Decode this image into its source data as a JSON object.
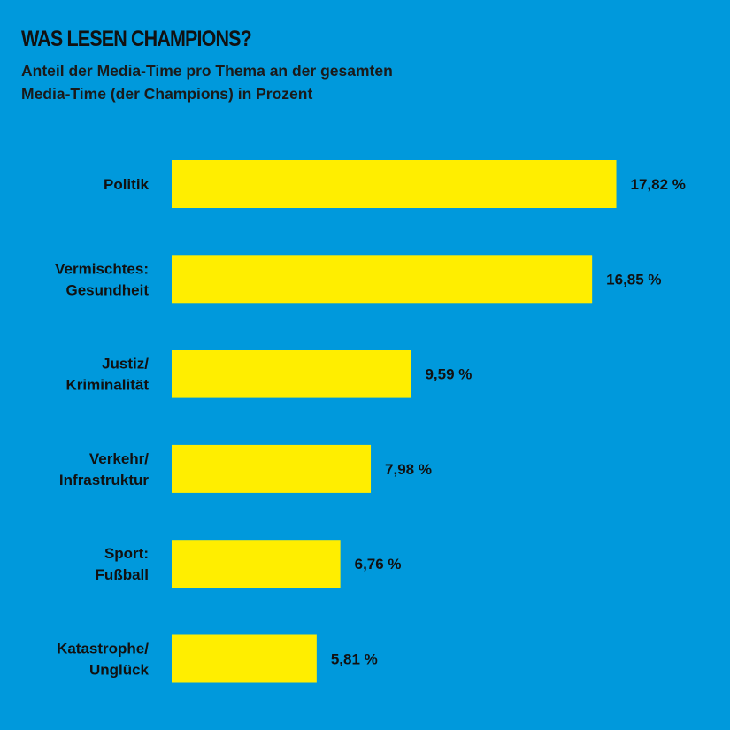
{
  "title": "WAS LESEN CHAMPIONS?",
  "subtitle_line1": "Anteil der Media-Time pro Thema an der gesamten",
  "subtitle_line2": "Media-Time (der Champions) in Prozent",
  "colors": {
    "background": "#0099dc",
    "bar": "#ffee00",
    "text": "#111111"
  },
  "chart_data": {
    "type": "bar",
    "orientation": "horizontal",
    "title": "WAS LESEN CHAMPIONS?",
    "subtitle": "Anteil der Media-Time pro Thema an der gesamten Media-Time (der Champions) in Prozent",
    "xlabel": "",
    "ylabel": "",
    "grid": false,
    "categories": [
      [
        "Politik"
      ],
      [
        "Vermischtes:",
        "Gesundheit"
      ],
      [
        "Justiz/",
        "Kriminalität"
      ],
      [
        "Verkehr/",
        "Infrastruktur"
      ],
      [
        "Sport:",
        "Fußball"
      ],
      [
        "Katastrophe/",
        "Unglück"
      ]
    ],
    "values": [
      17.82,
      16.85,
      9.59,
      7.98,
      6.76,
      5.81
    ],
    "value_labels": [
      "17,82 %",
      "16,85 %",
      "9,59 %",
      "7,98 %",
      "6,76 %",
      "5,81 %"
    ]
  }
}
